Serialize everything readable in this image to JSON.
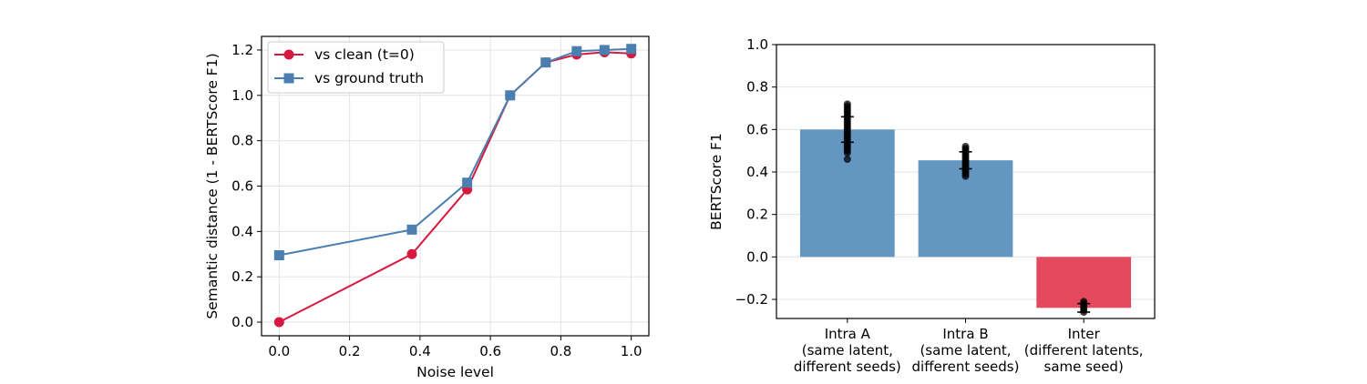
{
  "chart_data": [
    {
      "type": "line",
      "xlabel": "Noise level",
      "ylabel": "Semantic distance (1 - BERTScore F1)",
      "xlim": [
        -0.05,
        1.05
      ],
      "ylim": [
        -0.06,
        1.26
      ],
      "xticks": [
        "0.0",
        "0.2",
        "0.4",
        "0.6",
        "0.8",
        "1.0"
      ],
      "yticks": [
        "0.0",
        "0.2",
        "0.4",
        "0.6",
        "0.8",
        "1.0",
        "1.2"
      ],
      "grid": true,
      "legend_position": "upper-left",
      "series": [
        {
          "name": "vs clean (t=0)",
          "color": "#d7193f",
          "marker": "circle",
          "x": [
            0.0,
            0.377,
            0.534,
            0.656,
            0.757,
            0.845,
            0.924,
            1.0
          ],
          "y": [
            0.0,
            0.3,
            0.585,
            1.0,
            1.145,
            1.18,
            1.19,
            1.185
          ]
        },
        {
          "name": "vs ground truth",
          "color": "#4a7fb0",
          "marker": "square",
          "x": [
            0.0,
            0.377,
            0.534,
            0.656,
            0.757,
            0.845,
            0.924,
            1.0
          ],
          "y": [
            0.295,
            0.408,
            0.615,
            1.0,
            1.145,
            1.195,
            1.2,
            1.205
          ]
        }
      ]
    },
    {
      "type": "bar",
      "ylabel": "BERTScore F1",
      "ylim": [
        -0.29,
        1.0
      ],
      "yticks": [
        "−0.2",
        "0.0",
        "0.2",
        "0.4",
        "0.6",
        "0.8",
        "1.0"
      ],
      "grid": true,
      "categories": [
        [
          "Intra A",
          "(same latent,",
          "different seeds)"
        ],
        [
          "Intra B",
          "(same latent,",
          "different seeds)"
        ],
        [
          "Inter",
          "(different latents,",
          "same seed)"
        ]
      ],
      "values": [
        0.6,
        0.455,
        -0.24
      ],
      "bar_colors": [
        "#6496c2",
        "#6496c2",
        "#e4495e"
      ],
      "error": [
        [
          0.54,
          0.66
        ],
        [
          0.415,
          0.495
        ],
        [
          -0.26,
          -0.22
        ]
      ],
      "scatter_points": [
        [
          0.46,
          0.49,
          0.5,
          0.51,
          0.52,
          0.53,
          0.54,
          0.55,
          0.56,
          0.57,
          0.58,
          0.59,
          0.6,
          0.61,
          0.62,
          0.63,
          0.64,
          0.65,
          0.66,
          0.67,
          0.68,
          0.69,
          0.7,
          0.71,
          0.72
        ],
        [
          0.38,
          0.39,
          0.4,
          0.41,
          0.42,
          0.43,
          0.44,
          0.45,
          0.46,
          0.47,
          0.48,
          0.49,
          0.5,
          0.51,
          0.52
        ],
        [
          -0.21,
          -0.22,
          -0.23,
          -0.24,
          -0.25,
          -0.26
        ]
      ]
    }
  ]
}
